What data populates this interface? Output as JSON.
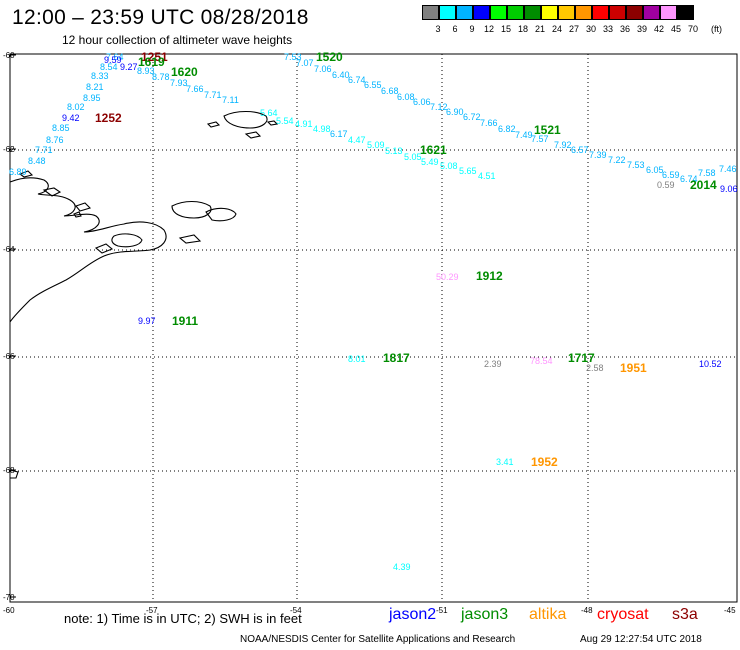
{
  "header": {
    "title": "12:00 – 23:59 UTC 08/28/2018",
    "subtitle": "12 hour collection of altimeter wave heights"
  },
  "colorbar": {
    "units": "(ft)",
    "bins": [
      {
        "label": "3",
        "color": "#808080"
      },
      {
        "label": "6",
        "color": "#00ffff"
      },
      {
        "label": "9",
        "color": "#00b4ff"
      },
      {
        "label": "12",
        "color": "#0000ff"
      },
      {
        "label": "15",
        "color": "#00ff00"
      },
      {
        "label": "18",
        "color": "#00cc00"
      },
      {
        "label": "21",
        "color": "#008c00"
      },
      {
        "label": "24",
        "color": "#ffff00"
      },
      {
        "label": "27",
        "color": "#ffc800"
      },
      {
        "label": "30",
        "color": "#ff9600"
      },
      {
        "label": "33",
        "color": "#ff0000"
      },
      {
        "label": "36",
        "color": "#cc0000"
      },
      {
        "label": "39",
        "color": "#8c0000"
      },
      {
        "label": "42",
        "color": "#a000a0"
      },
      {
        "label": "45",
        "color": "#ff96ff"
      },
      {
        "label": "70",
        "color": "#000000"
      }
    ]
  },
  "map": {
    "lat_ticks": [
      "-60",
      "-62",
      "-64",
      "-66",
      "-68",
      "-70"
    ],
    "lon_ticks": [
      "-60",
      "-57",
      "-54",
      "-51",
      "-48",
      "-45"
    ]
  },
  "wave_heights": [
    {
      "text": "7.64",
      "color": "#00b4ff"
    },
    {
      "text": "9.59",
      "color": "#0000ff"
    },
    {
      "text": "8.54",
      "color": "#00b4ff"
    },
    {
      "text": "9.27",
      "color": "#0000ff"
    },
    {
      "text": "8.93",
      "color": "#00b4ff"
    },
    {
      "text": "8.78",
      "color": "#00b4ff"
    },
    {
      "text": "8.33",
      "color": "#00b4ff"
    },
    {
      "text": "8.21",
      "color": "#00b4ff"
    },
    {
      "text": "8.95",
      "color": "#00b4ff"
    },
    {
      "text": "8.02",
      "color": "#00b4ff"
    },
    {
      "text": "9.42",
      "color": "#0000ff"
    },
    {
      "text": "8.85",
      "color": "#00b4ff"
    },
    {
      "text": "8.76",
      "color": "#00b4ff"
    },
    {
      "text": "7.71",
      "color": "#00b4ff"
    },
    {
      "text": "8.48",
      "color": "#00b4ff"
    },
    {
      "text": "6.89",
      "color": "#00b4ff"
    },
    {
      "text": "7.93",
      "color": "#00b4ff"
    },
    {
      "text": "7.66",
      "color": "#00b4ff"
    },
    {
      "text": "7.71",
      "color": "#00b4ff"
    },
    {
      "text": "7.11",
      "color": "#00b4ff"
    },
    {
      "text": "7.53",
      "color": "#00b4ff"
    },
    {
      "text": "7.07",
      "color": "#00b4ff"
    },
    {
      "text": "7.06",
      "color": "#00b4ff"
    },
    {
      "text": "6.40",
      "color": "#00b4ff"
    },
    {
      "text": "6.74",
      "color": "#00b4ff"
    },
    {
      "text": "6.55",
      "color": "#00b4ff"
    },
    {
      "text": "6.68",
      "color": "#00b4ff"
    },
    {
      "text": "6.08",
      "color": "#00b4ff"
    },
    {
      "text": "6.06",
      "color": "#00b4ff"
    },
    {
      "text": "7.12",
      "color": "#00b4ff"
    },
    {
      "text": "6.90",
      "color": "#00b4ff"
    },
    {
      "text": "6.72",
      "color": "#00b4ff"
    },
    {
      "text": "7.66",
      "color": "#00b4ff"
    },
    {
      "text": "6.82",
      "color": "#00b4ff"
    },
    {
      "text": "7.49",
      "color": "#00b4ff"
    },
    {
      "text": "7.57",
      "color": "#00b4ff"
    },
    {
      "text": "7.92",
      "color": "#00b4ff"
    },
    {
      "text": "6.57",
      "color": "#00b4ff"
    },
    {
      "text": "7.39",
      "color": "#00b4ff"
    },
    {
      "text": "7.22",
      "color": "#00b4ff"
    },
    {
      "text": "7.53",
      "color": "#00b4ff"
    },
    {
      "text": "6.05",
      "color": "#00b4ff"
    },
    {
      "text": "6.59",
      "color": "#00b4ff"
    },
    {
      "text": "6.74",
      "color": "#00b4ff"
    },
    {
      "text": "7.58",
      "color": "#00b4ff"
    },
    {
      "text": "7.46",
      "color": "#00b4ff"
    },
    {
      "text": "9.06",
      "color": "#0000ff"
    },
    {
      "text": "0.59",
      "color": "#808080"
    },
    {
      "text": "5.64",
      "color": "#00ffff"
    },
    {
      "text": "5.54",
      "color": "#00ffff"
    },
    {
      "text": "4.91",
      "color": "#00ffff"
    },
    {
      "text": "4.98",
      "color": "#00ffff"
    },
    {
      "text": "6.17",
      "color": "#00b4ff"
    },
    {
      "text": "4.47",
      "color": "#00ffff"
    },
    {
      "text": "5.09",
      "color": "#00ffff"
    },
    {
      "text": "5.13",
      "color": "#00ffff"
    },
    {
      "text": "5.05",
      "color": "#00ffff"
    },
    {
      "text": "5.49",
      "color": "#00ffff"
    },
    {
      "text": "5.08",
      "color": "#00ffff"
    },
    {
      "text": "5.65",
      "color": "#00ffff"
    },
    {
      "text": "4.51",
      "color": "#00ffff"
    },
    {
      "text": "50.29",
      "color": "#ff96ff"
    },
    {
      "text": "9.97",
      "color": "#0000ff"
    },
    {
      "text": "8.01",
      "color": "#00ffff"
    },
    {
      "text": "2.39",
      "color": "#808080"
    },
    {
      "text": "78.54",
      "color": "#ff96ff"
    },
    {
      "text": "2.58",
      "color": "#808080"
    },
    {
      "text": "10.52",
      "color": "#0000ff"
    },
    {
      "text": "3.41",
      "color": "#00ffff"
    },
    {
      "text": "4.39",
      "color": "#00ffff"
    }
  ],
  "time_labels": [
    {
      "text": "1251",
      "color": "#8c0000"
    },
    {
      "text": "1619",
      "color": "#008c00"
    },
    {
      "text": "1620",
      "color": "#008c00"
    },
    {
      "text": "1520",
      "color": "#008c00"
    },
    {
      "text": "1252",
      "color": "#8c0000"
    },
    {
      "text": "1521",
      "color": "#008c00"
    },
    {
      "text": "1621",
      "color": "#008c00"
    },
    {
      "text": "2014",
      "color": "#008c00"
    },
    {
      "text": "1912",
      "color": "#008c00"
    },
    {
      "text": "1911",
      "color": "#008c00"
    },
    {
      "text": "1817",
      "color": "#008c00"
    },
    {
      "text": "1717",
      "color": "#008c00"
    },
    {
      "text": "1951",
      "color": "#ff9600"
    },
    {
      "text": "1952",
      "color": "#ff9600"
    }
  ],
  "footer": {
    "note": "note:  1) Time is in UTC;  2) SWH is in feet",
    "satellites": [
      {
        "name": "jason2",
        "color": "#0000ff"
      },
      {
        "name": "jason3",
        "color": "#008c00"
      },
      {
        "name": "altika",
        "color": "#ff9600"
      },
      {
        "name": "cryosat",
        "color": "#ff0000"
      },
      {
        "name": "s3a",
        "color": "#8c0000"
      }
    ],
    "credit": "NOAA/NESDIS Center for Satellite Applications and Research",
    "timestamp": "Aug 29 12:27:54 UTC 2018"
  }
}
